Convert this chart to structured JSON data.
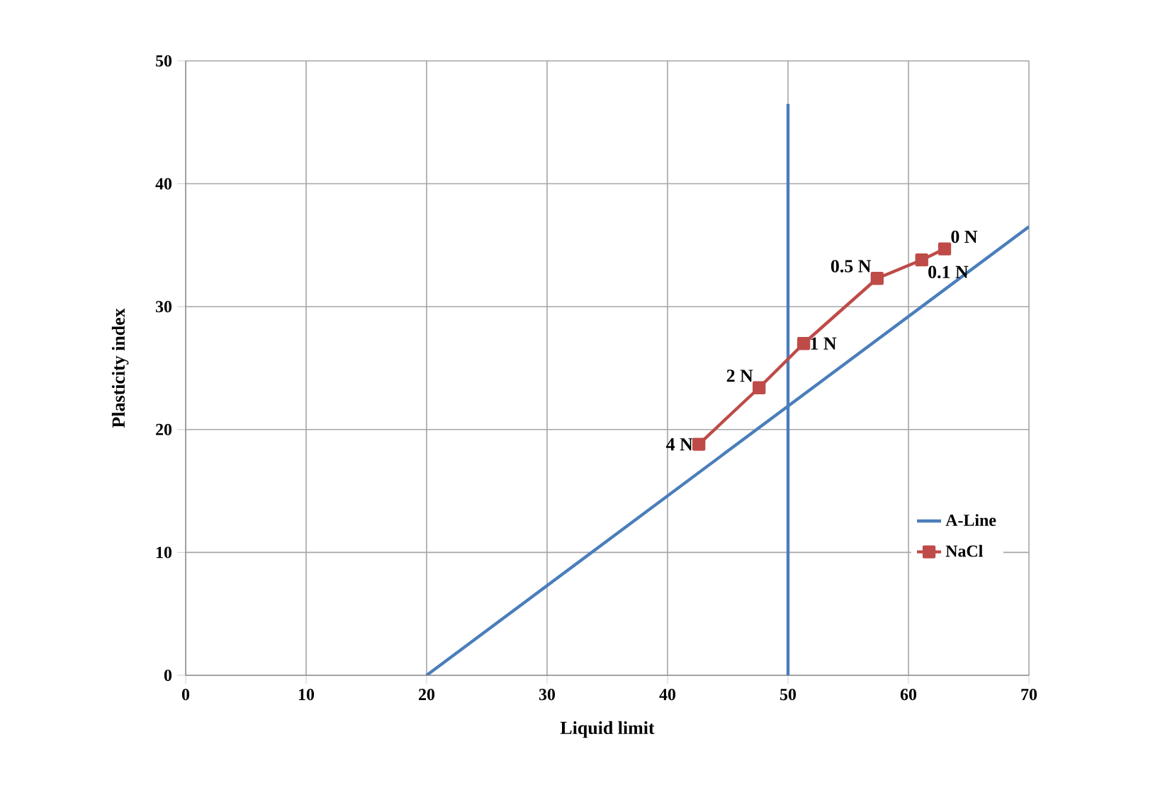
{
  "chart_data": {
    "type": "line",
    "xlabel": "Liquid  limit",
    "ylabel": "Plasticity  index",
    "xlim": [
      0,
      70
    ],
    "ylim": [
      0,
      50
    ],
    "xticks": [
      0,
      10,
      20,
      30,
      40,
      50,
      60,
      70
    ],
    "yticks": [
      0,
      10,
      20,
      30,
      40,
      50
    ],
    "grid": true,
    "legend": "bottom right",
    "series": [
      {
        "name": "A-Line",
        "color": "#4a7ebb",
        "x": [
          20,
          70
        ],
        "values": [
          0,
          36.5
        ],
        "marker": "none"
      },
      {
        "color": "#4a7ebb",
        "x": [
          50,
          50
        ],
        "values": [
          0,
          46.5
        ],
        "marker": "none"
      },
      {
        "name": "NaCl",
        "color": "#be4b48",
        "x": [
          42.6,
          47.6,
          51.3,
          57.4,
          61.1,
          63.0
        ],
        "values": [
          18.8,
          23.4,
          27.0,
          32.3,
          33.8,
          34.7
        ],
        "marker": "square"
      }
    ],
    "annotations": [
      {
        "text": "4 N",
        "x": 42.6,
        "y": 18.8
      },
      {
        "text": "2 N",
        "x": 47.6,
        "y": 23.4
      },
      {
        "text": "1 N",
        "x": 51.3,
        "y": 27.0
      },
      {
        "text": "0.5 N",
        "x": 57.4,
        "y": 32.3
      },
      {
        "text": "0.1 N",
        "x": 61.1,
        "y": 33.8
      },
      {
        "text": "0 N",
        "x": 63.0,
        "y": 34.7
      }
    ]
  }
}
